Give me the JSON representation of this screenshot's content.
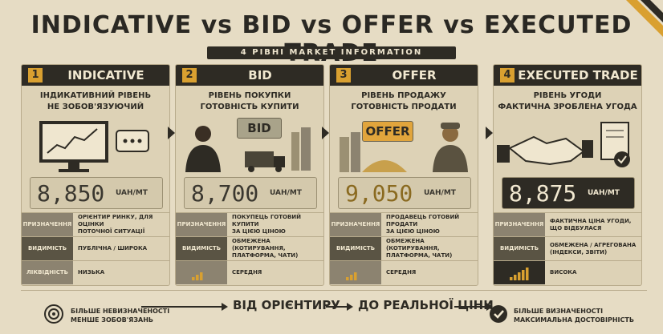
{
  "header": {
    "title": "INDICATIVE vs BID vs OFFER vs EXECUTED TRADE",
    "subtitle": "4 РІВНІ MARKET INFORMATION"
  },
  "cards": [
    {
      "number": "1",
      "title": "INDICATIVE",
      "description": [
        "ІНДИКАТИВНИЙ РІВЕНЬ",
        "НЕ ЗОБОВ'ЯЗУЮЧИЙ"
      ],
      "price": "8,850",
      "unit": "UAH/MT",
      "rows": [
        {
          "label": "ПРИЗНАЧЕННЯ",
          "text": [
            "ОРІЄНТИР РИНКУ, ДЛЯ ОЦІНКИ",
            "ПОТОЧНОЇ СИТУАЦІЇ"
          ]
        },
        {
          "label": "ВИДИМІСТЬ",
          "text": [
            "ПУБЛІЧНА / ШИРОКА"
          ]
        },
        {
          "label": "ЛІКВІДНІСТЬ",
          "text": [
            "НИЗЬКА"
          ]
        }
      ]
    },
    {
      "number": "2",
      "title": "BID",
      "description": [
        "РІВЕНЬ ПОКУПКИ",
        "ГОТОВНІСТЬ КУПИТИ"
      ],
      "badge": "BID",
      "price": "8,700",
      "unit": "UAH/MT",
      "rows": [
        {
          "label": "ПРИЗНАЧЕННЯ",
          "text": [
            "ПОКУПЕЦЬ ГОТОВИЙ КУПИТИ",
            "ЗА ЦІЄЮ ЦІНОЮ"
          ]
        },
        {
          "label": "ВИДИМІСТЬ",
          "text": [
            "ОБМЕЖЕНА (КОТИРУВАННЯ,",
            "ПЛАТФОРМА, ЧАТИ)"
          ]
        },
        {
          "text": [
            "СЕРЕДНЯ"
          ]
        }
      ]
    },
    {
      "number": "3",
      "title": "OFFER",
      "description": [
        "РІВЕНЬ ПРОДАЖУ",
        "ГОТОВНІСТЬ ПРОДАТИ"
      ],
      "badge": "OFFER",
      "price": "9,050",
      "unit": "UAH/MT",
      "rows": [
        {
          "label": "ПРИЗНАЧЕННЯ",
          "text": [
            "ПРОДАВЕЦЬ ГОТОВИЙ ПРОДАТИ",
            "ЗА ЦІЄЮ ЦІНОЮ"
          ]
        },
        {
          "label": "ВИДИМІСТЬ",
          "text": [
            "ОБМЕЖЕНА (КОТИРУВАННЯ,",
            "ПЛАТФОРМА, ЧАТИ)"
          ]
        },
        {
          "text": [
            "СЕРЕДНЯ"
          ]
        }
      ]
    },
    {
      "number": "4",
      "title": "EXECUTED TRADE",
      "description": [
        "РІВЕНЬ УГОДИ",
        "ФАКТИЧНА ЗРОБЛЕНА УГОДА"
      ],
      "price": "8,875",
      "unit": "UAH/MT",
      "rows": [
        {
          "label": "ПРИЗНАЧЕННЯ",
          "text": [
            "ФАКТИЧНА ЦІНА УГОДИ,",
            "ЩО ВІДБУЛАСЯ"
          ]
        },
        {
          "label": "ВИДИМІСТЬ",
          "text": [
            "ОБМЕЖЕНА / АГРЕГОВАНА",
            "(ІНДЕКСИ, ЗВІТИ)"
          ]
        },
        {
          "text": [
            "ВИСОКА"
          ]
        }
      ]
    }
  ],
  "footer": {
    "left": [
      "БІЛЬШЕ НЕВИЗНАЧЕНОСТІ",
      "МЕНШЕ ЗОБОВ'ЯЗАНЬ"
    ],
    "center_from": "ВІД ОРІЄНТИРУ",
    "center_to": "ДО РЕАЛЬНОЇ ЦІНИ",
    "right": [
      "БІЛЬШЕ ВИЗНАЧЕНОСТІ",
      "МАКСИМАЛЬНА ДОСТОВІРНІСТЬ"
    ]
  }
}
